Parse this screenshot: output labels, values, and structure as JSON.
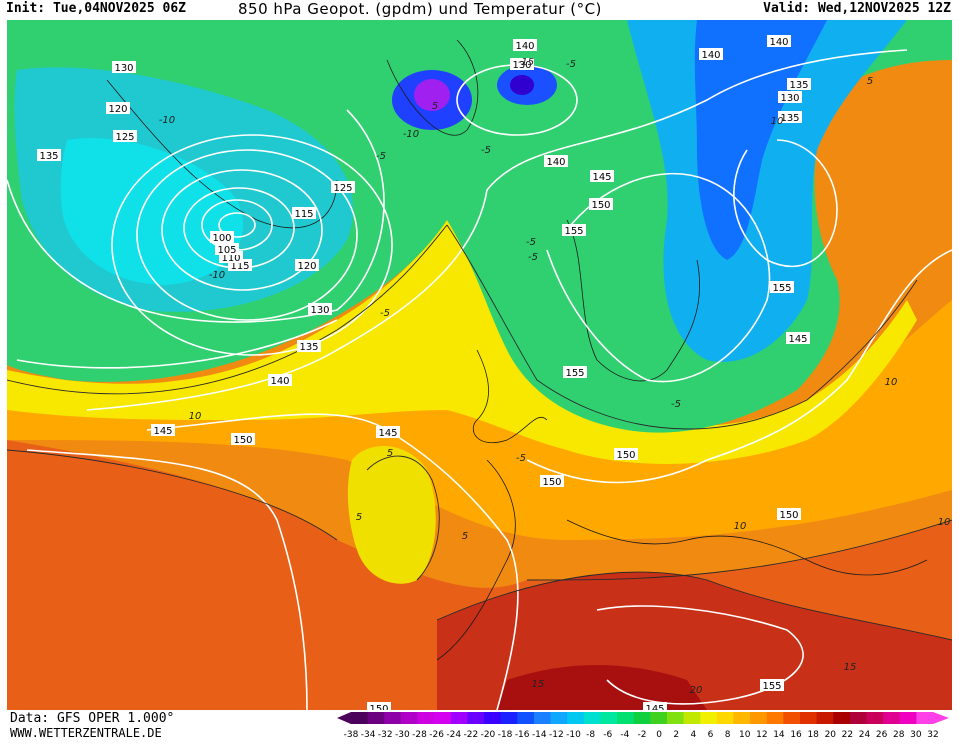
{
  "header": {
    "init": "Init: Tue,04NOV2025 06Z",
    "title": "850 hPa Geopot. (gpdm) und Temperatur (°C)",
    "valid": "Valid: Wed,12NOV2025 12Z"
  },
  "footer": {
    "data_source": "Data: GFS OPER 1.000°",
    "website": "WWW.WETTERZENTRALE.DE"
  },
  "colors": {
    "scale": [
      "#4b005a",
      "#6a0080",
      "#8e00a8",
      "#b000c8",
      "#cc00e0",
      "#d600f0",
      "#a000ff",
      "#6a00ff",
      "#3a00ff",
      "#1a20ff",
      "#1050ff",
      "#1a80ff",
      "#10a8ff",
      "#00c8f0",
      "#00e0d0",
      "#00e8a0",
      "#00e070",
      "#10d040",
      "#40d020",
      "#80e010",
      "#c0e800",
      "#f0f000",
      "#ffd800",
      "#ffb800",
      "#ff9800",
      "#ff7800",
      "#f05000",
      "#e03000",
      "#c81800",
      "#a80000",
      "#b0003a",
      "#c8005a",
      "#e00090",
      "#f000c0",
      "#ff40e8"
    ]
  },
  "scale_labels": [
    "-38",
    "-34",
    "-32",
    "-30",
    "-28",
    "-26",
    "-24",
    "-22",
    "-20",
    "-18",
    "-16",
    "-14",
    "-12",
    "-10",
    "-8",
    "-6",
    "-4",
    "-2",
    "0",
    "2",
    "4",
    "6",
    "8",
    "10",
    "12",
    "14",
    "16",
    "18",
    "20",
    "22",
    "24",
    "26",
    "28",
    "30",
    "32"
  ],
  "map": {
    "geopotential_labels": [
      "135",
      "130",
      "125",
      "120",
      "115",
      "110",
      "105",
      "100",
      "115",
      "120",
      "125",
      "130",
      "135",
      "140",
      "145",
      "150",
      "145",
      "150",
      "155",
      "150",
      "155",
      "145",
      "150",
      "155",
      "140",
      "130",
      "135",
      "140",
      "140",
      "145",
      "150",
      "155",
      "140",
      "145",
      "150",
      "130",
      "135"
    ],
    "temperature_labels": [
      "-10",
      "-10",
      "-15",
      "-5",
      "-5",
      "-5",
      "-5",
      "-5",
      "5",
      "5",
      "10",
      "10",
      "10",
      "5",
      "5",
      "-5",
      "-5",
      "-10",
      "10",
      "10",
      "15",
      "20",
      "15",
      "-5",
      "5"
    ]
  }
}
